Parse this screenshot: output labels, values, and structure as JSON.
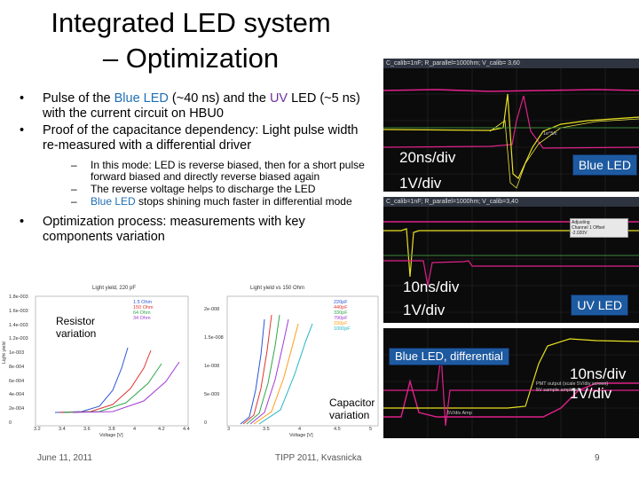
{
  "title": {
    "line1": "Integrated LED system",
    "line2": "– Optimization"
  },
  "bullets": {
    "b1_a": "Pulse of the ",
    "b1_blue": "Blue LED",
    "b1_b": " (~40 ns) and the ",
    "b1_uv": "UV",
    "b1_c": " LED (~5 ns) with the current circuit on HBU0",
    "b2": "Proof of the capacitance dependency: Light pulse width re-measured with a differential driver",
    "sub1": "In this mode: LED is reverse biased, then for a short pulse forward biased and directly reverse biased again",
    "sub2": "The reverse voltage helps to discharge the LED",
    "sub3_blue": "Blue LED",
    "sub3_rest": " stops shining much faster in differential mode",
    "b3": "Optimization process: measurements with key components variation",
    "dot": "•",
    "dash": "–"
  },
  "scopes": [
    {
      "bar": "C_calib=1nF; R_parallel=1000hm; V_calib= 3,60",
      "scale_t": "20ns/div",
      "scale_v": "1V/div",
      "badge": "Blue LED",
      "small": "1e°5/c"
    },
    {
      "bar": "C_calib=1nF; R_parallel=1000hm; V_calib=3,40",
      "scale_t": "10ns/div",
      "scale_v": "1V/div",
      "badge": "UV LED",
      "hud_title": "Adjusting",
      "hud_line1": "Channel 1 Offset",
      "hud_line2": "-2.020V"
    },
    {
      "badge": "Blue LED, differential",
      "scale_t": "10ns/div",
      "scale_v": "1V/div",
      "note1": "PMT output (scale 5V/div screen)",
      "note2": "5V sample amplitude",
      "note3": "5V/div Amp"
    }
  ],
  "plot_left": {
    "title": "Light yield, 220 pF",
    "ylabel": "Light yield",
    "xlabel": "Voltage [V]",
    "y_ticks": [
      "1.8e-003",
      "1.6e-003",
      "1.4e-003",
      "1.2e-003",
      "1e-003",
      "8e-004",
      "6e-004",
      "4e-004",
      "2e-004",
      "0"
    ],
    "x_ticks": [
      "3.2",
      "3.4",
      "3.6",
      "3.8",
      "4",
      "4.2",
      "4.4"
    ],
    "legend": [
      "1.5 Ohm",
      "150 Ohm",
      "64 Ohm",
      "34 Ohm"
    ],
    "callout_l1": "Resistor",
    "callout_l2": "variation"
  },
  "plot_right": {
    "title": "Light yield vs 150 Ohm",
    "xlabel": "Voltage [V]",
    "y_ticks": [
      "2e-008",
      "1.5e-008",
      "1e-008",
      "5e-009",
      "0"
    ],
    "x_ticks": [
      "3",
      "3.5",
      "4",
      "4.5",
      "5"
    ],
    "legend": [
      "220pF",
      "440pF",
      "330pF",
      "790pF",
      "330pF",
      "1000pF"
    ],
    "callout_l1": "Capacitor",
    "callout_l2": "variation"
  },
  "colors": {
    "series": [
      "#2b55d6",
      "#e0372e",
      "#2fa84a",
      "#a23ad6",
      "#ff9f1a",
      "#1fb5c4"
    ],
    "badge": "#1e5aa0"
  },
  "footer": {
    "date": "June 11, 2011",
    "conf": "TIPP 2011, Kvasnicka",
    "page": "9"
  }
}
